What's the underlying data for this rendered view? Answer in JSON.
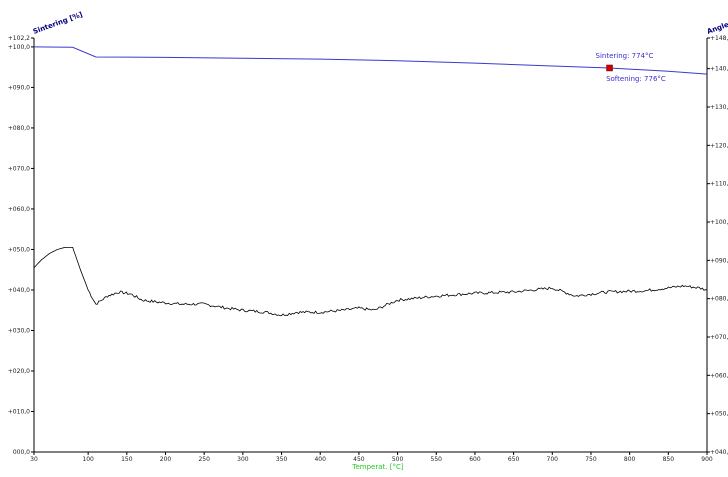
{
  "chart_data": {
    "type": "line",
    "xlabel": "Temperat. [°C]",
    "ylabel_left": "Sintering [%]",
    "ylabel_right": "Angle [",
    "x_ticks": [
      30,
      100,
      150,
      200,
      250,
      300,
      350,
      400,
      450,
      500,
      550,
      600,
      650,
      700,
      750,
      800,
      850,
      900
    ],
    "xlim": [
      30,
      900
    ],
    "ylim_left": [
      0,
      102.2
    ],
    "ylim_right": [
      40,
      148
    ],
    "y_ticks_left": [
      "000,0",
      "+010,0",
      "+020,0",
      "+030,0",
      "+040,0",
      "+050,0",
      "+060,0",
      "+070,0",
      "+080,0",
      "+090,0",
      "+100,0",
      "+102,2"
    ],
    "y_ticks_right": [
      "+040,0",
      "+050,0",
      "+060,0",
      "+070,0",
      "+080,0",
      "+090,0",
      "+100,0",
      "+110,0",
      "+120,0",
      "+130,0",
      "+140,0",
      "+148,0"
    ],
    "series": [
      {
        "color": "#3a3ad0",
        "axis": "left",
        "x": [
          30,
          80,
          110,
          200,
          300,
          400,
          500,
          600,
          700,
          774,
          850,
          900
        ],
        "y": [
          100.0,
          99.9,
          97.5,
          97.4,
          97.2,
          97.0,
          96.6,
          96.0,
          95.3,
          94.8,
          94.0,
          93.3
        ]
      },
      {
        "color": "#000000",
        "axis": "left",
        "x": [
          30,
          40,
          50,
          60,
          70,
          80,
          90,
          100,
          110,
          125,
          140,
          155,
          170,
          190,
          220,
          250,
          280,
          300,
          330,
          350,
          370,
          400,
          430,
          450,
          470,
          500,
          550,
          600,
          650,
          700,
          730,
          770,
          820,
          870,
          890,
          900
        ],
        "y": [
          45.5,
          47.5,
          49.0,
          50.0,
          50.5,
          50.5,
          45.0,
          40.0,
          36.5,
          38.5,
          39.5,
          39.0,
          37.5,
          37.0,
          36.5,
          36.5,
          35.5,
          35.0,
          34.5,
          33.8,
          34.5,
          34.5,
          35.0,
          35.5,
          35.0,
          37.5,
          38.5,
          39.2,
          39.5,
          40.5,
          38.5,
          39.5,
          39.8,
          41.0,
          40.5,
          40.0
        ]
      }
    ],
    "annotations": [
      {
        "text": "Sintering: 774°C",
        "x": 774,
        "y": 94.8
      },
      {
        "text": "Softening: 776°C",
        "x": 776,
        "y": 94.8
      }
    ],
    "marker": {
      "x": 774,
      "y": 94.8,
      "color": "#cc0000"
    },
    "grid": false
  }
}
